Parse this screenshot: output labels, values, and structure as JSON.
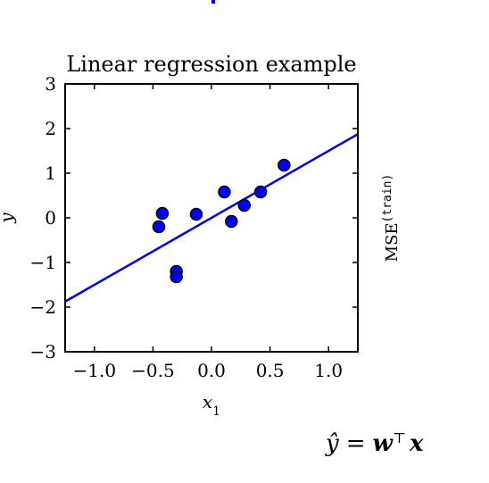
{
  "chart_data": {
    "type": "scatter",
    "title": "Linear regression example",
    "xlabel": "x",
    "xlabel_subscript": "1",
    "ylabel": "y",
    "xlim": [
      -1.25,
      1.25
    ],
    "ylim": [
      -3,
      3
    ],
    "xticks": [
      -1.0,
      -0.5,
      0.0,
      0.5,
      1.0
    ],
    "xtick_labels": [
      "−1.0",
      "−0.5",
      "0.0",
      "0.5",
      "1.0"
    ],
    "yticks": [
      -3,
      -2,
      -1,
      0,
      1,
      2,
      3
    ],
    "ytick_labels": [
      "−3",
      "−2",
      "−1",
      "0",
      "1",
      "2",
      "3"
    ],
    "grid": false,
    "points": {
      "x": [
        -0.45,
        -0.42,
        -0.3,
        -0.3,
        -0.13,
        0.11,
        0.17,
        0.28,
        0.42,
        0.62
      ],
      "y": [
        -0.2,
        0.1,
        -1.2,
        -1.32,
        0.08,
        0.58,
        -0.08,
        0.28,
        0.58,
        1.18
      ],
      "color": "#0000ff",
      "edge_color": "#000000"
    },
    "fit_line": {
      "slope": 1.5,
      "intercept": 0,
      "color": "#0000ff"
    },
    "side_label": "MSE",
    "side_label_superscript": "(train)",
    "formula": {
      "lhs": "ŷ",
      "eq": "=",
      "w": "w",
      "transpose": "⊤",
      "x": "x"
    }
  }
}
